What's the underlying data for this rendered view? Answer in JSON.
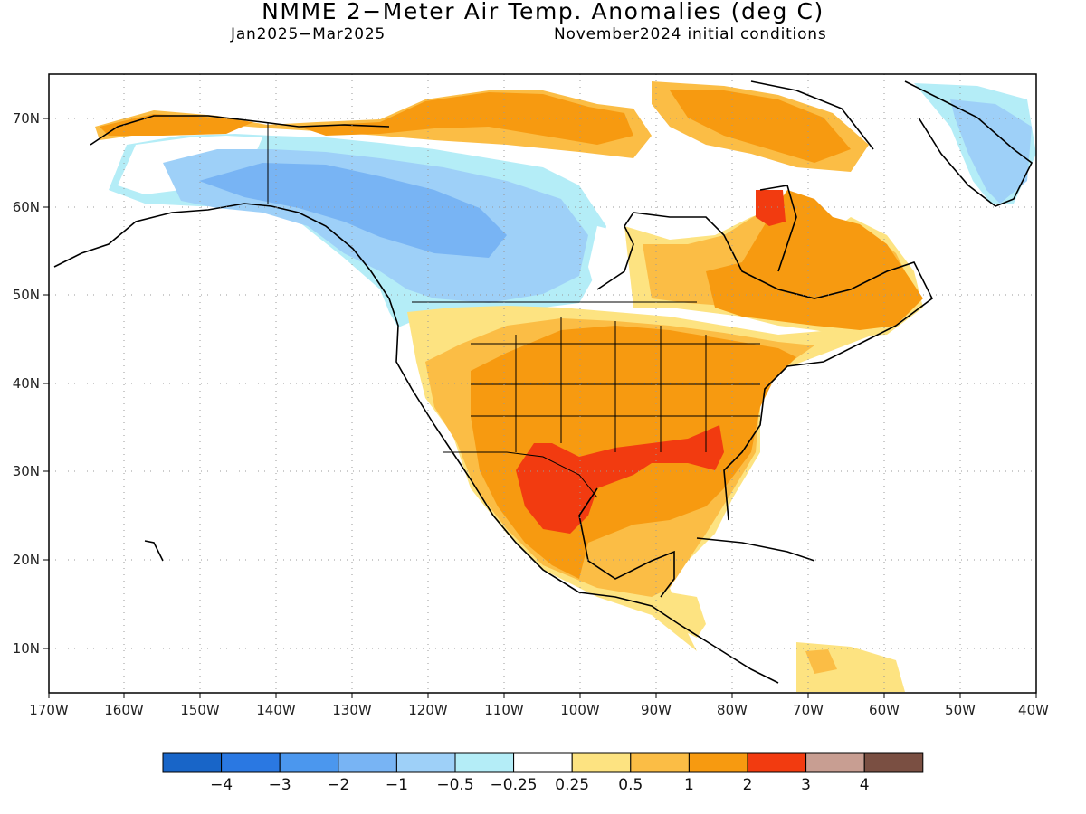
{
  "title": "NMME 2−Meter Air Temp. Anomalies (deg C)",
  "subtitle_left": "Jan2025−Mar2025",
  "subtitle_right": "November2024 initial conditions",
  "lat_labels": [
    "70N",
    "60N",
    "50N",
    "40N",
    "30N",
    "20N",
    "10N"
  ],
  "lon_labels": [
    "170W",
    "160W",
    "150W",
    "140W",
    "130W",
    "120W",
    "110W",
    "100W",
    "90W",
    "80W",
    "70W",
    "60W",
    "50W",
    "40W"
  ],
  "colorbar": {
    "colors": [
      "#1865c8",
      "#2a78e2",
      "#4b97ee",
      "#78b4f4",
      "#9ed0f8",
      "#b4edf7",
      "#ffffff",
      "#fde381",
      "#fbbd45",
      "#f79a10",
      "#f23b10",
      "#c89e92",
      "#7a4f42"
    ],
    "labels": [
      "−4",
      "−3",
      "−2",
      "−1",
      "−0.5",
      "−0.25",
      "0.25",
      "0.5",
      "1",
      "2",
      "3",
      "4"
    ]
  }
}
